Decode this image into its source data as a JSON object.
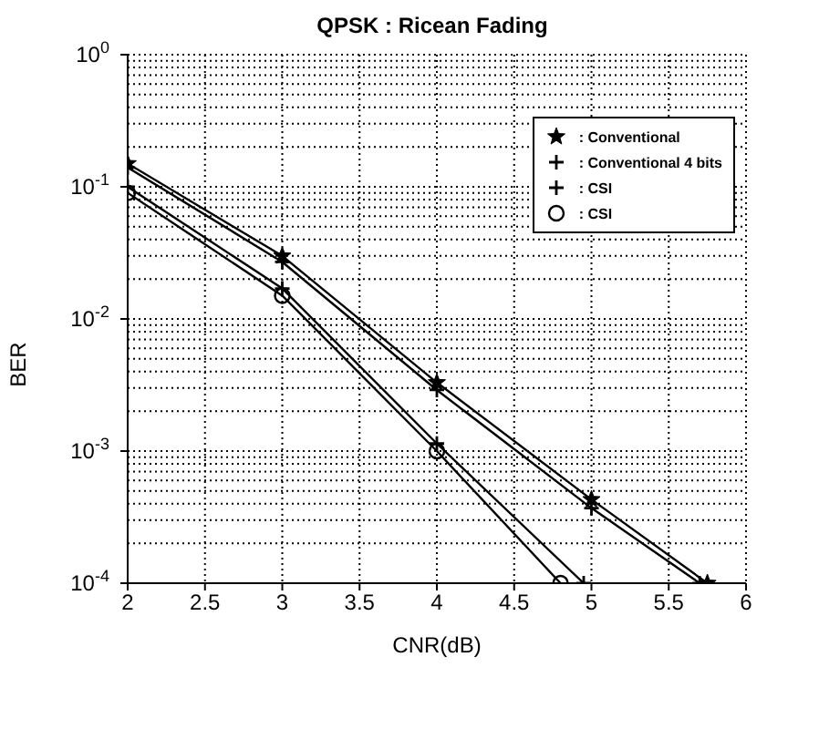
{
  "chart_data": {
    "type": "line",
    "title": "QPSK : Ricean Fading",
    "xlabel": "CNR(dB)",
    "ylabel": "BER",
    "series": [
      {
        "name": ": Conventional",
        "color": "#000000",
        "marker": "star",
        "x": [
          2,
          3,
          4,
          5,
          5.75
        ],
        "values": [
          0.15,
          0.03,
          0.0033,
          0.00043,
          0.0001
        ]
      },
      {
        "name": ": Conventional 4 bits",
        "color": "#000000",
        "marker": "cross",
        "x": [
          2,
          3,
          4,
          5,
          5.7
        ],
        "values": [
          0.14,
          0.027,
          0.0029,
          0.00037,
          0.0001
        ]
      },
      {
        "name": ": CSI",
        "color": "#000000",
        "marker": "cross",
        "x": [
          2,
          3,
          4,
          4.95
        ],
        "values": [
          0.1,
          0.017,
          0.00114,
          0.0001
        ]
      },
      {
        "name": ": CSI",
        "color": "#000000",
        "marker": "circle",
        "x": [
          2,
          3,
          4,
          4.8
        ],
        "values": [
          0.09,
          0.015,
          0.001,
          0.0001
        ]
      }
    ],
    "log": "y",
    "xlim": [
      2,
      6
    ],
    "xticks": [
      2,
      2.5,
      3,
      3.5,
      4,
      4.5,
      5,
      5.5,
      6
    ],
    "ylim": [
      0.0001,
      1
    ],
    "yticks": [
      {
        "value": 0.0001,
        "label": "10$^{-4}$"
      },
      {
        "value": 0.001,
        "label": "10$^{-3}$"
      },
      {
        "value": 0.01,
        "label": "10$^{-2}$"
      },
      {
        "value": 0.1,
        "label": "10$^{-1}$"
      },
      {
        "value": 1,
        "label": "10$^{0}$"
      }
    ],
    "grid": true,
    "legend": "top right",
    "line_style": "solid"
  }
}
